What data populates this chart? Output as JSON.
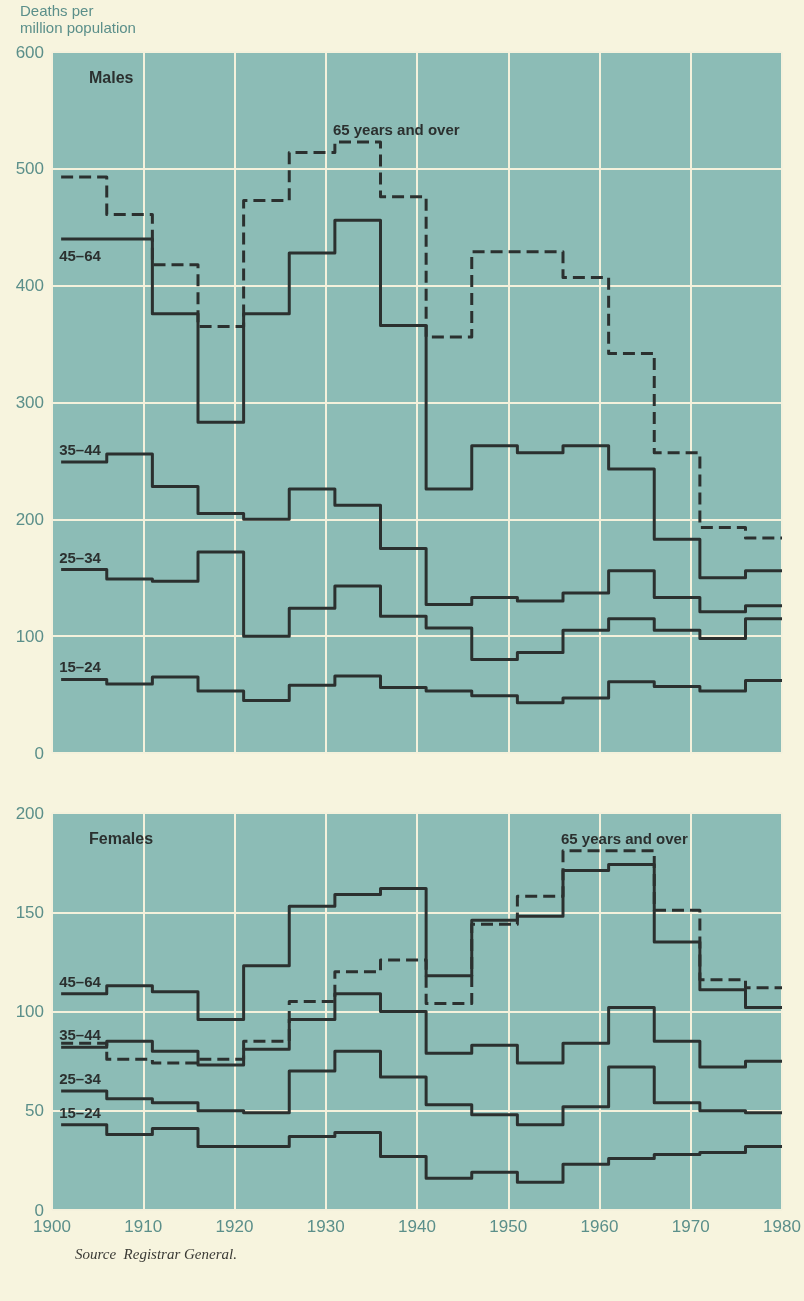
{
  "chart_data": [
    {
      "type": "step",
      "title": "Males",
      "ylabel": "Deaths per\nmillion population",
      "x": [
        1901,
        1906,
        1911,
        1916,
        1921,
        1926,
        1931,
        1936,
        1941,
        1946,
        1951,
        1956,
        1961,
        1966,
        1971,
        1976,
        1980
      ],
      "xlim": [
        1900,
        1980
      ],
      "xticks": [
        1900,
        1910,
        1920,
        1930,
        1940,
        1950,
        1960,
        1970,
        1980
      ],
      "ylim": [
        0,
        600
      ],
      "yticks": [
        0,
        100,
        200,
        300,
        400,
        500,
        600
      ],
      "grid": true,
      "legend": false,
      "tick_labels": "y",
      "marker": "none",
      "series": [
        {
          "name": "65 years and over",
          "color": "#2b302f",
          "line_style": "dashed",
          "values": [
            493,
            461,
            418,
            365,
            473,
            514,
            523,
            476,
            356,
            429,
            429,
            407,
            342,
            257,
            193,
            184,
            184
          ]
        },
        {
          "name": "45–64",
          "color": "#2b302f",
          "line_style": "solid",
          "values": [
            440,
            440,
            376,
            283,
            376,
            428,
            456,
            366,
            226,
            263,
            257,
            263,
            243,
            183,
            150,
            156,
            156
          ]
        },
        {
          "name": "35–44",
          "color": "#2b302f",
          "line_style": "solid",
          "values": [
            249,
            256,
            228,
            205,
            200,
            226,
            212,
            175,
            127,
            133,
            130,
            137,
            156,
            133,
            121,
            126,
            126
          ]
        },
        {
          "name": "25–34",
          "color": "#2b302f",
          "line_style": "solid",
          "values": [
            157,
            149,
            147,
            172,
            100,
            124,
            143,
            117,
            107,
            80,
            86,
            105,
            115,
            105,
            98,
            115,
            115
          ]
        },
        {
          "name": "15–24",
          "color": "#2b302f",
          "line_style": "solid",
          "values": [
            63,
            59,
            65,
            53,
            45,
            58,
            66,
            56,
            53,
            49,
            43,
            47,
            61,
            57,
            53,
            62,
            62
          ]
        }
      ]
    },
    {
      "type": "step",
      "title": "Females",
      "x": [
        1901,
        1906,
        1911,
        1916,
        1921,
        1926,
        1931,
        1936,
        1941,
        1946,
        1951,
        1956,
        1961,
        1966,
        1971,
        1976,
        1980
      ],
      "xlim": [
        1900,
        1980
      ],
      "xticks": [
        1900,
        1910,
        1920,
        1930,
        1940,
        1950,
        1960,
        1970,
        1980
      ],
      "ylim": [
        0,
        200
      ],
      "yticks": [
        0,
        50,
        100,
        150,
        200
      ],
      "grid": true,
      "legend": false,
      "marker": "none",
      "annotations": [
        "Source  Registrar General."
      ],
      "series": [
        {
          "name": "65 years and over",
          "color": "#2b302f",
          "line_style": "dashed",
          "values": [
            84,
            76,
            74,
            76,
            85,
            105,
            120,
            126,
            104,
            144,
            158,
            181,
            181,
            151,
            116,
            112,
            112
          ]
        },
        {
          "name": "45–64",
          "color": "#2b302f",
          "line_style": "solid",
          "values": [
            109,
            113,
            110,
            96,
            123,
            153,
            159,
            162,
            118,
            146,
            148,
            171,
            174,
            135,
            111,
            102,
            102
          ]
        },
        {
          "name": "35–44",
          "color": "#2b302f",
          "line_style": "solid",
          "values": [
            82,
            85,
            80,
            73,
            81,
            96,
            109,
            100,
            79,
            83,
            74,
            84,
            102,
            85,
            72,
            75,
            75
          ]
        },
        {
          "name": "25–34",
          "color": "#2b302f",
          "line_style": "solid",
          "values": [
            60,
            56,
            54,
            50,
            49,
            70,
            80,
            67,
            53,
            48,
            43,
            52,
            72,
            54,
            50,
            49,
            49
          ]
        },
        {
          "name": "15–24",
          "color": "#2b302f",
          "line_style": "solid",
          "values": [
            43,
            38,
            41,
            32,
            32,
            37,
            39,
            27,
            16,
            19,
            14,
            23,
            26,
            28,
            29,
            32,
            32
          ]
        }
      ]
    }
  ]
}
